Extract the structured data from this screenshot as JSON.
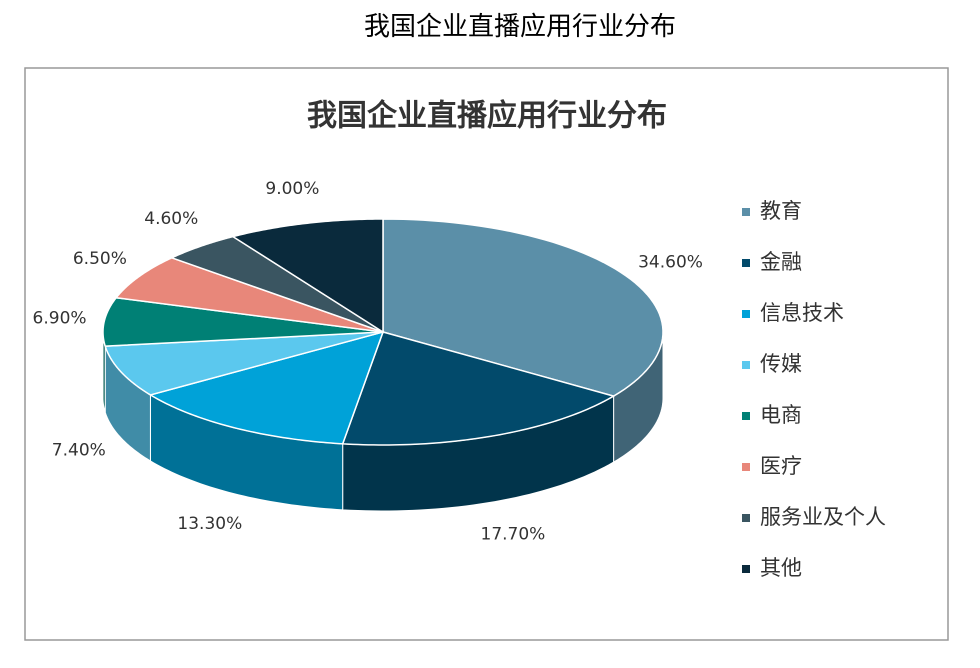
{
  "page_title": "我国企业直播应用行业分布",
  "chart_data": {
    "type": "pie",
    "title": "我国企业直播应用行业分布",
    "categories": [
      "教育",
      "金融",
      "信息技术",
      "传媒",
      "电商",
      "医疗",
      "服务业及个人",
      "其他"
    ],
    "values": [
      34.6,
      17.7,
      13.3,
      7.4,
      6.9,
      6.5,
      4.6,
      9.0
    ],
    "value_labels": [
      "34.60%",
      "17.70%",
      "13.30%",
      "7.40%",
      "6.90%",
      "6.50%",
      "4.60%",
      "9.00%"
    ],
    "colors": [
      "#5b8fa8",
      "#024a6b",
      "#00a2d8",
      "#5bc8ee",
      "#008075",
      "#e8877a",
      "#3a5561",
      "#0a2a3c"
    ],
    "legend": "right"
  }
}
